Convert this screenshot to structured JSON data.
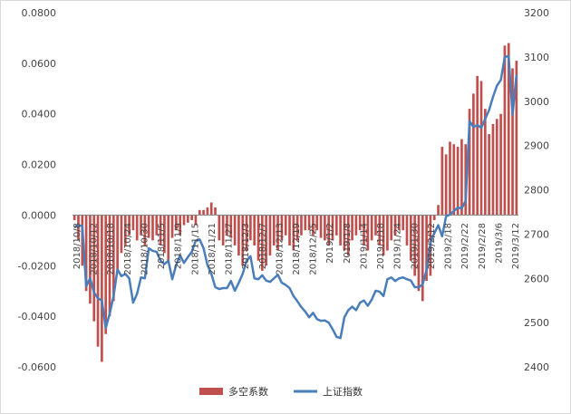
{
  "chart_data": {
    "type": "bar+line",
    "colors": {
      "bar": "#C0504D",
      "line": "#4A7EBB",
      "axis": "#808080",
      "frame": "#d9d9d9"
    },
    "left_axis": {
      "min": -0.06,
      "max": 0.08,
      "ticks": [
        "0.0800",
        "0.0600",
        "0.0400",
        "0.0200",
        "0.0000",
        "-0.0200",
        "-0.0400",
        "-0.0600"
      ]
    },
    "right_axis": {
      "min": 2400,
      "max": 3200,
      "ticks": [
        "3200",
        "3100",
        "3000",
        "2900",
        "2800",
        "2700",
        "2600",
        "2500",
        "2400"
      ]
    },
    "x_tick_labels": [
      "2018/10/8",
      "2018/10/12",
      "2018/10/18",
      "2018/10/24",
      "2018/10/30",
      "2018/11/5",
      "2018/11/9",
      "2018/11/15",
      "2018/11/21",
      "2018/11/27",
      "2018/12/3",
      "2018/12/7",
      "2018/12/13",
      "2018/12/19",
      "2018/12/25",
      "2019/1/2",
      "2019/1/8",
      "2019/1/14",
      "2019/1/18",
      "2019/1/24",
      "2019/1/30",
      "2019/2/12",
      "2019/2/18",
      "2019/2/22",
      "2019/2/28",
      "2019/3/6",
      "2019/3/12"
    ],
    "series": [
      {
        "name": "多空系数",
        "type": "bar",
        "axis": "left",
        "values": [
          -0.002,
          -0.01,
          -0.02,
          -0.03,
          -0.035,
          -0.042,
          -0.052,
          -0.058,
          -0.047,
          -0.04,
          -0.034,
          -0.022,
          -0.015,
          -0.012,
          -0.008,
          -0.006,
          -0.01,
          -0.008,
          -0.012,
          -0.009,
          -0.01,
          -0.008,
          -0.012,
          -0.015,
          -0.018,
          -0.009,
          -0.006,
          -0.008,
          -0.004,
          -0.003,
          -0.002,
          -0.004,
          0.002,
          0.002,
          0.003,
          0.005,
          0.003,
          -0.01,
          -0.012,
          -0.008,
          -0.009,
          -0.012,
          -0.016,
          -0.02,
          -0.014,
          -0.01,
          -0.012,
          -0.018,
          -0.022,
          -0.02,
          -0.016,
          -0.012,
          -0.014,
          -0.01,
          -0.008,
          -0.012,
          -0.014,
          -0.01,
          -0.008,
          -0.006,
          -0.006,
          -0.008,
          -0.006,
          -0.009,
          -0.01,
          -0.012,
          -0.01,
          -0.008,
          -0.012,
          -0.014,
          -0.016,
          -0.01,
          -0.008,
          -0.006,
          -0.012,
          -0.014,
          -0.01,
          -0.008,
          -0.012,
          -0.016,
          -0.014,
          -0.01,
          -0.008,
          -0.006,
          -0.006,
          -0.012,
          -0.018,
          -0.024,
          -0.03,
          -0.034,
          -0.026,
          -0.024,
          -0.002,
          0.004,
          0.027,
          0.024,
          0.029,
          0.028,
          0.027,
          0.03,
          0.028,
          0.042,
          0.048,
          0.055,
          0.053,
          0.042,
          0.032,
          0.036,
          0.038,
          0.04,
          0.067,
          0.068,
          0.058,
          0.061
        ]
      },
      {
        "name": "上证指数",
        "type": "line",
        "axis": "right",
        "values": [
          2715,
          2720,
          2718,
          2582,
          2600,
          2568,
          2555,
          2550,
          2488,
          2520,
          2560,
          2620,
          2605,
          2610,
          2600,
          2545,
          2565,
          2602,
          2600,
          2668,
          2662,
          2660,
          2640,
          2632,
          2640,
          2598,
          2630,
          2652,
          2635,
          2648,
          2660,
          2685,
          2688,
          2668,
          2630,
          2610,
          2580,
          2576,
          2578,
          2578,
          2594,
          2572,
          2590,
          2610,
          2640,
          2650,
          2600,
          2598,
          2607,
          2595,
          2592,
          2600,
          2608,
          2590,
          2585,
          2578,
          2560,
          2548,
          2535,
          2525,
          2512,
          2522,
          2508,
          2504,
          2505,
          2500,
          2485,
          2468,
          2465,
          2512,
          2528,
          2536,
          2528,
          2545,
          2550,
          2538,
          2552,
          2572,
          2570,
          2560,
          2598,
          2602,
          2594,
          2600,
          2602,
          2598,
          2595,
          2580,
          2580,
          2586,
          2618,
          2680,
          2702,
          2720,
          2695,
          2740,
          2744,
          2752,
          2760,
          2758,
          2775,
          2955,
          2942,
          2946,
          2940,
          2960,
          2980,
          3010,
          3035,
          3048,
          3100,
          3102,
          2970,
          3060
        ]
      }
    ],
    "legend": {
      "position": "bottom"
    }
  }
}
